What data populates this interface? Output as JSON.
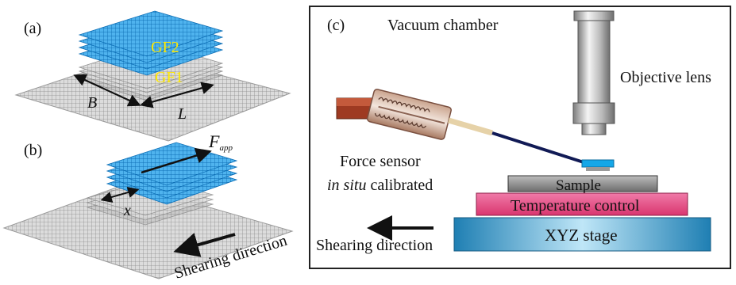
{
  "panel_a": {
    "label": "(a)",
    "layer_top": "GF2",
    "layer_bottom": "GF1",
    "dim_width": "B",
    "dim_length": "L"
  },
  "panel_b": {
    "label": "(b)",
    "force_symbol": "F",
    "force_subscript": "app",
    "displacement": "x",
    "direction_text": "Shearing direction"
  },
  "panel_c": {
    "label": "(c)",
    "chamber": "Vacuum chamber",
    "objective": "Objective lens",
    "sensor_line1": "Force sensor",
    "sensor_line2_italic": "in situ",
    "sensor_line2_rest": " calibrated",
    "sample": "Sample",
    "temperature": "Temperature control",
    "stage": "XYZ stage",
    "direction_text": "Shearing direction"
  },
  "colors": {
    "graphene_blue": "#1e8fd6",
    "substrate_gray": "#a8a8a8",
    "label_yellow": "#ffe800",
    "temperature_pink": "#e04a86",
    "stage_blue": "#2c97c9",
    "sample_gray": "#8a8a8a",
    "sensor_brown": "#9e5a3c",
    "frame": "#222222"
  }
}
